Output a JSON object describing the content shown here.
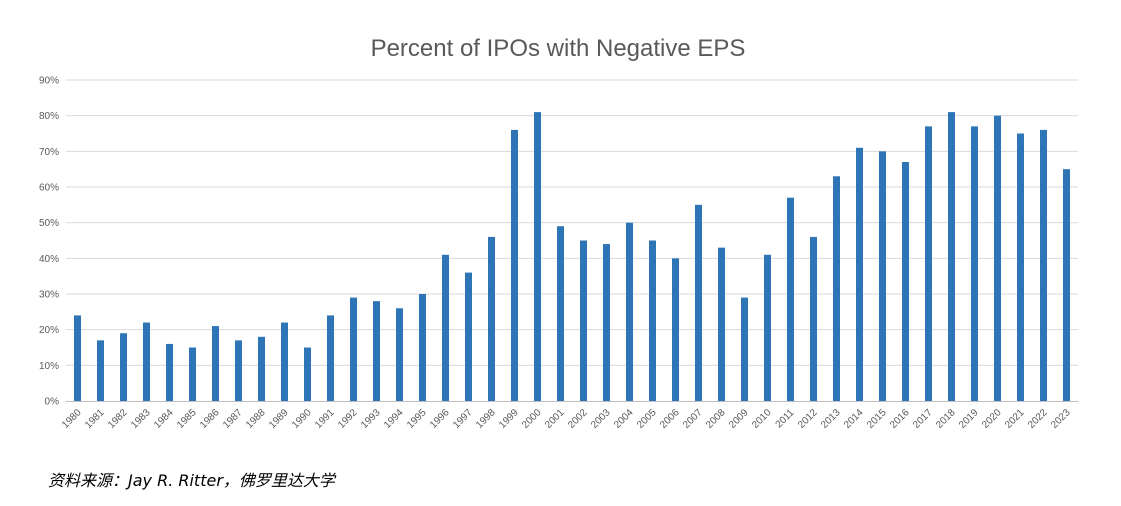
{
  "chart_data": {
    "type": "bar",
    "title": "Percent of IPOs with Negative EPS",
    "xlabel": "",
    "ylabel": "",
    "ylim": [
      0,
      90
    ],
    "y_tick_values": [
      0,
      10,
      20,
      30,
      40,
      50,
      60,
      70,
      80,
      90
    ],
    "y_tick_labels": [
      "0%",
      "10%",
      "20%",
      "30%",
      "40%",
      "50%",
      "60%",
      "70%",
      "80%",
      "90%"
    ],
    "grid": true,
    "bar_color": "#2E75B6",
    "categories": [
      "1980",
      "1981",
      "1982",
      "1983",
      "1984",
      "1985",
      "1986",
      "1987",
      "1988",
      "1989",
      "1990",
      "1991",
      "1992",
      "1993",
      "1994",
      "1995",
      "1996",
      "1997",
      "1998",
      "1999",
      "2000",
      "2001",
      "2002",
      "2003",
      "2004",
      "2005",
      "2006",
      "2007",
      "2008",
      "2009",
      "2010",
      "2011",
      "2012",
      "2013",
      "2014",
      "2015",
      "2016",
      "2017",
      "2018",
      "2019",
      "2020",
      "2021",
      "2022",
      "2023"
    ],
    "values": [
      24,
      17,
      19,
      22,
      16,
      15,
      21,
      17,
      18,
      22,
      15,
      24,
      29,
      28,
      26,
      30,
      41,
      36,
      46,
      76,
      81,
      49,
      45,
      44,
      50,
      45,
      40,
      55,
      43,
      29,
      41,
      57,
      46,
      63,
      71,
      70,
      67,
      77,
      81,
      77,
      80,
      75,
      76,
      65
    ]
  },
  "source_note": "资料来源：Jay R. Ritter，佛罗里达大学"
}
